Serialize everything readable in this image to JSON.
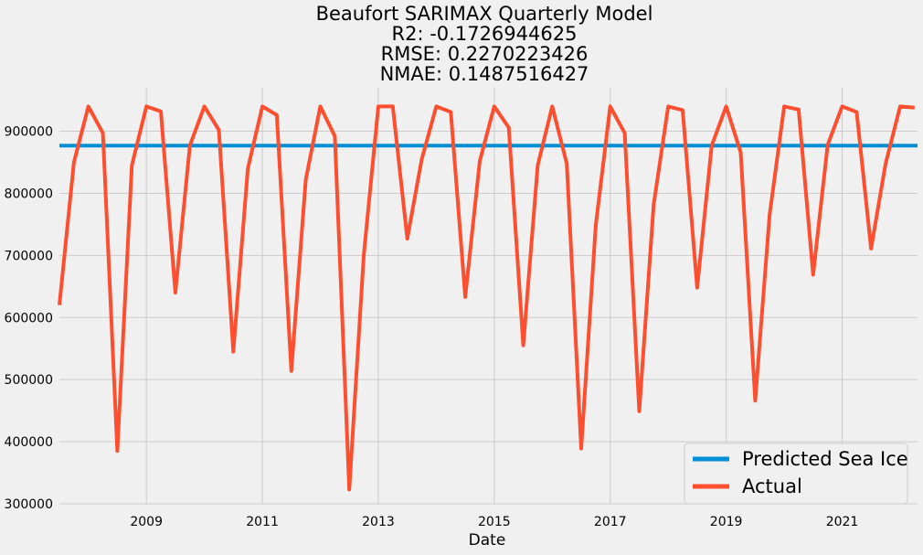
{
  "chart_data": {
    "type": "line",
    "title_lines": [
      "Beaufort SARIMAX Quarterly Model",
      "R2: -0.1726944625",
      "RMSE: 0.2270223426",
      "NMAE: 0.1487516427"
    ],
    "xlabel": "Date",
    "ylabel": "",
    "xlim": [
      2007.5,
      2022.3
    ],
    "ylim": [
      300000,
      970000
    ],
    "x_ticks": [
      2009,
      2011,
      2013,
      2015,
      2017,
      2019,
      2021
    ],
    "x_tick_labels": [
      "2009",
      "2011",
      "2013",
      "2015",
      "2017",
      "2019",
      "2021"
    ],
    "y_ticks": [
      300000,
      400000,
      500000,
      600000,
      700000,
      800000,
      900000
    ],
    "y_tick_labels": [
      "300000",
      "400000",
      "500000",
      "600000",
      "700000",
      "800000",
      "900000"
    ],
    "grid": true,
    "legend_position": "bottom-right",
    "series": [
      {
        "name": "Predicted Sea Ice",
        "color": "#008fd5",
        "x": [
          2007.5,
          2022.3
        ],
        "y": [
          877000,
          877000
        ]
      },
      {
        "name": "Actual",
        "color": "#fc4f30",
        "x": [
          2007.5,
          2007.75,
          2008.0,
          2008.25,
          2008.5,
          2008.75,
          2009.0,
          2009.25,
          2009.5,
          2009.75,
          2010.0,
          2010.25,
          2010.5,
          2010.75,
          2011.0,
          2011.25,
          2011.5,
          2011.75,
          2012.0,
          2012.25,
          2012.5,
          2012.75,
          2013.0,
          2013.25,
          2013.5,
          2013.75,
          2014.0,
          2014.25,
          2014.5,
          2014.75,
          2015.0,
          2015.25,
          2015.5,
          2015.75,
          2016.0,
          2016.25,
          2016.5,
          2016.75,
          2017.0,
          2017.25,
          2017.5,
          2017.75,
          2018.0,
          2018.25,
          2018.5,
          2018.75,
          2019.0,
          2019.25,
          2019.5,
          2019.75,
          2020.0,
          2020.25,
          2020.5,
          2020.75,
          2021.0,
          2021.25,
          2021.5,
          2021.75,
          2022.0,
          2022.25
        ],
        "y": [
          620000,
          850000,
          940000,
          897000,
          385000,
          845000,
          940000,
          932000,
          640000,
          877000,
          940000,
          902000,
          545000,
          840000,
          940000,
          926000,
          514000,
          822000,
          940000,
          892000,
          323000,
          701000,
          940000,
          940000,
          727000,
          855000,
          940000,
          931000,
          633000,
          852000,
          940000,
          906000,
          555000,
          845000,
          940000,
          848000,
          389000,
          748000,
          940000,
          897000,
          449000,
          782000,
          940000,
          934000,
          648000,
          877000,
          940000,
          866000,
          466000,
          766000,
          940000,
          935000,
          669000,
          878000,
          940000,
          931000,
          711000,
          848000,
          940000,
          938000
        ]
      }
    ]
  }
}
